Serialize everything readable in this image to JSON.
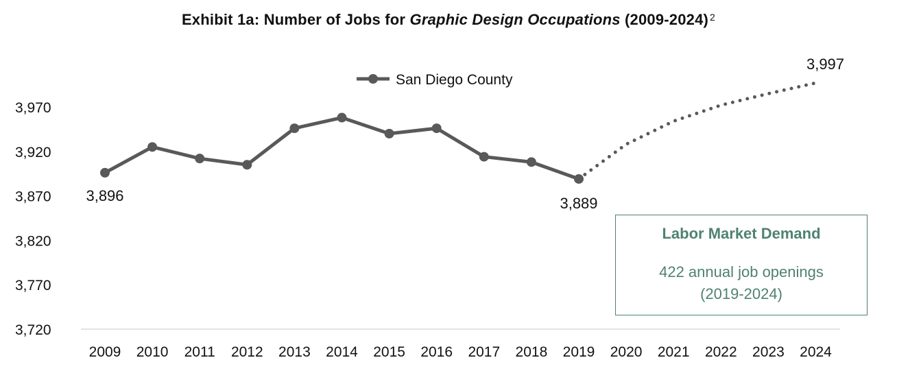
{
  "title": {
    "prefix": "Exhibit 1a: Number of Jobs for ",
    "italic": "Graphic Design Occupations",
    "suffix": " (2009-2024)",
    "footnote": "2"
  },
  "callout": {
    "title": "Labor Market Demand",
    "line1": "422 annual job openings",
    "line2": "(2019-2024)"
  },
  "colors": {
    "series": "#595959",
    "callout": "#4f8270"
  },
  "chart_data": {
    "type": "line",
    "x": [
      "2009",
      "2010",
      "2011",
      "2012",
      "2013",
      "2014",
      "2015",
      "2016",
      "2017",
      "2018",
      "2019",
      "2020",
      "2021",
      "2022",
      "2023",
      "2024"
    ],
    "ylim": [
      3720,
      3997
    ],
    "yticks": [
      "3,720",
      "3,770",
      "3,820",
      "3,870",
      "3,920",
      "3,970"
    ],
    "ytick_values": [
      3720,
      3770,
      3820,
      3870,
      3920,
      3970
    ],
    "legend": "top-center",
    "grid": false,
    "series": [
      {
        "name": "San Diego County",
        "style": "solid-markers",
        "x": [
          "2009",
          "2010",
          "2011",
          "2012",
          "2013",
          "2014",
          "2015",
          "2016",
          "2017",
          "2018",
          "2019"
        ],
        "values": [
          3896,
          3925,
          3912,
          3905,
          3946,
          3958,
          3940,
          3946,
          3914,
          3908,
          3889
        ]
      },
      {
        "name": "",
        "style": "dotted-projection",
        "x": [
          "2019",
          "2020",
          "2021",
          "2022",
          "2023",
          "2024"
        ],
        "values": [
          3889,
          3928,
          3954,
          3972,
          3985,
          3997
        ]
      }
    ],
    "data_labels": [
      {
        "x": "2009",
        "value": 3896,
        "text": "3,896"
      },
      {
        "x": "2019",
        "value": 3889,
        "text": "3,889"
      },
      {
        "x": "2024",
        "value": 3997,
        "text": "3,997"
      }
    ]
  }
}
